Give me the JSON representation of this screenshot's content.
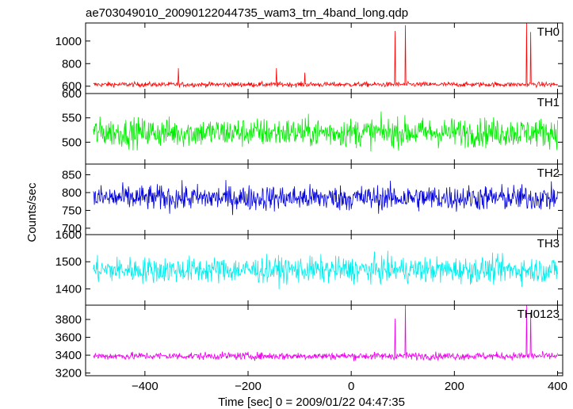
{
  "chart_data": {
    "type": "line",
    "title": "ae703049010_20090122044735_wam3_trn_4band_long.qdp",
    "xlabel": "Time [sec] 0 = 2009/01/22 04:47:35",
    "ylabel": "Counts/sec",
    "xlim": [
      -515,
      410
    ],
    "xticks": [
      -400,
      -200,
      0,
      200,
      400
    ],
    "xtick_labels": [
      "−400",
      "−200",
      "0",
      "200",
      "400"
    ],
    "grid": false,
    "panels": [
      {
        "name": "TH0",
        "color": "#ff0000",
        "ylim": [
          535,
          1160
        ],
        "yticks": [
          600,
          800,
          1000
        ],
        "x_range": [
          -500,
          400
        ],
        "baseline": 615,
        "noise": 18,
        "spikes": [
          {
            "x": -335,
            "y": 760
          },
          {
            "x": -145,
            "y": 760
          },
          {
            "x": -90,
            "y": 720
          },
          {
            "x": 85,
            "y": 1090
          },
          {
            "x": 105,
            "y": 1140
          },
          {
            "x": 340,
            "y": 1160
          },
          {
            "x": 348,
            "y": 1080
          }
        ]
      },
      {
        "name": "TH1",
        "color": "#00ee00",
        "ylim": [
          455,
          600
        ],
        "yticks": [
          500,
          550,
          600
        ],
        "x_range": [
          -500,
          400
        ],
        "baseline": 520,
        "noise": 25,
        "spikes": []
      },
      {
        "name": "TH2",
        "color": "#0000dd",
        "ylim": [
          682,
          880
        ],
        "yticks": [
          700,
          750,
          800,
          850
        ],
        "x_range": [
          -500,
          400
        ],
        "baseline": 785,
        "noise": 30,
        "spikes": []
      },
      {
        "name": "TH3",
        "color": "#00eeee",
        "ylim": [
          1340,
          1600
        ],
        "yticks": [
          1400,
          1500,
          1600
        ],
        "x_range": [
          -500,
          400
        ],
        "baseline": 1470,
        "noise": 40,
        "spikes": []
      },
      {
        "name": "TH0123",
        "color": "#ee00ee",
        "ylim": [
          3170,
          3960
        ],
        "yticks": [
          3200,
          3400,
          3600,
          3800
        ],
        "x_range": [
          -500,
          400
        ],
        "baseline": 3390,
        "noise": 35,
        "spikes": [
          {
            "x": 85,
            "y": 3810
          },
          {
            "x": 105,
            "y": 3960
          },
          {
            "x": 340,
            "y": 3960
          },
          {
            "x": 348,
            "y": 3880
          }
        ]
      }
    ]
  }
}
